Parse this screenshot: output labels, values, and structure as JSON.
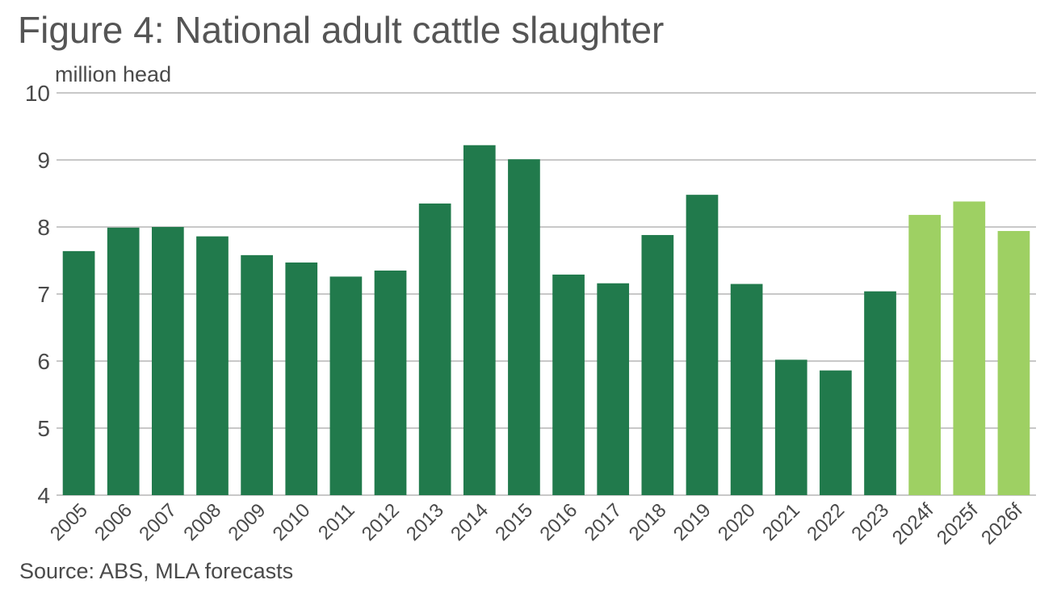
{
  "title": "Figure 4: National adult cattle slaughter",
  "source": "Source: ABS, MLA forecasts",
  "colors": {
    "actual": "#217A4C",
    "forecast": "#9ED063",
    "grid": "#a6a6a6"
  },
  "chart_data": {
    "type": "bar",
    "title": "Figure 4: National adult cattle slaughter",
    "ylabel": "million head",
    "xlabel": "",
    "ylim": [
      4,
      10
    ],
    "yticks": [
      4,
      5,
      6,
      7,
      8,
      9,
      10
    ],
    "grid": true,
    "categories": [
      "2005",
      "2006",
      "2007",
      "2008",
      "2009",
      "2010",
      "2011",
      "2012",
      "2013",
      "2014",
      "2015",
      "2016",
      "2017",
      "2018",
      "2019",
      "2020",
      "2021",
      "2022",
      "2023",
      "2024f",
      "2025f",
      "2026f"
    ],
    "values": [
      7.64,
      7.99,
      8.0,
      7.86,
      7.58,
      7.47,
      7.26,
      7.35,
      8.35,
      9.22,
      9.01,
      7.29,
      7.16,
      7.88,
      8.48,
      7.15,
      6.02,
      5.86,
      7.04,
      8.18,
      8.38,
      7.94
    ],
    "forecast": [
      false,
      false,
      false,
      false,
      false,
      false,
      false,
      false,
      false,
      false,
      false,
      false,
      false,
      false,
      false,
      false,
      false,
      false,
      false,
      true,
      true,
      true
    ]
  }
}
